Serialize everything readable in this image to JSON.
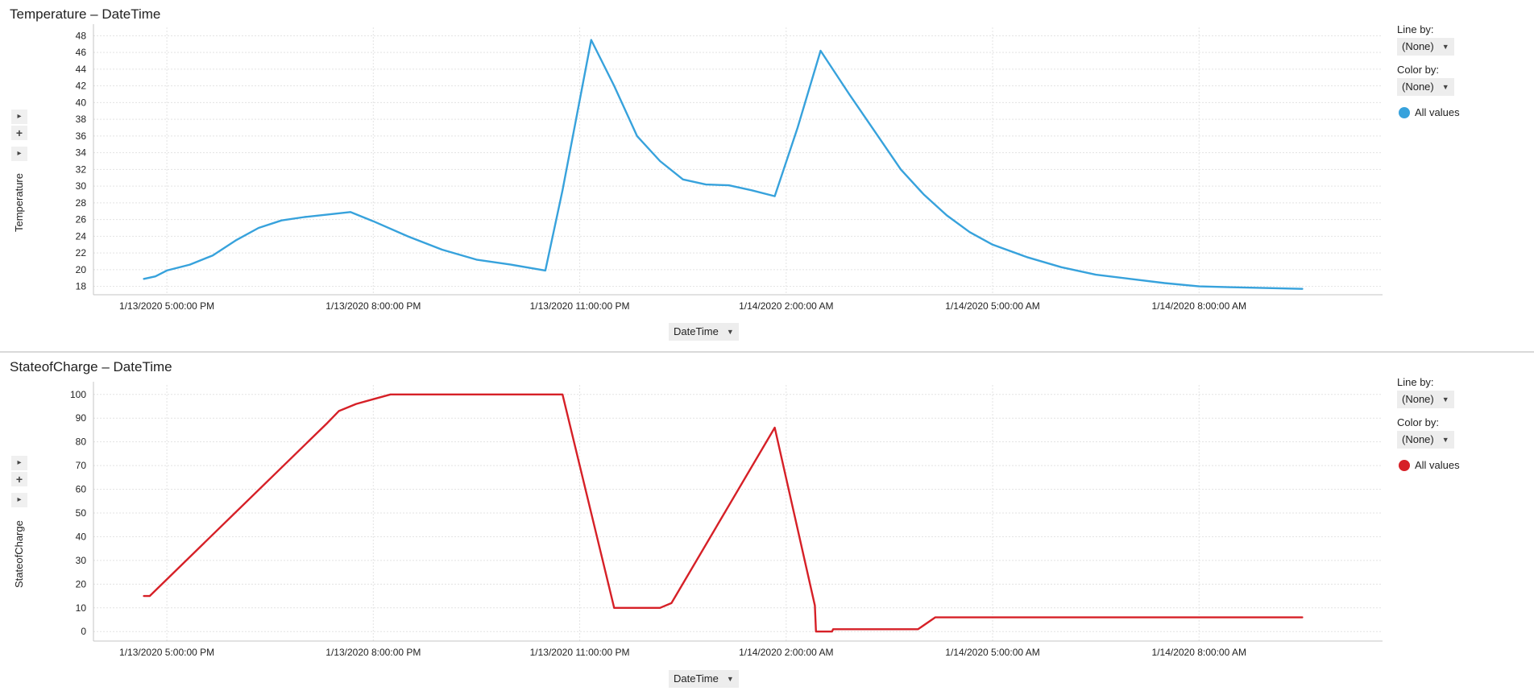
{
  "chart_data": [
    {
      "type": "line",
      "title": "Temperature – DateTime",
      "xlabel": "DateTime",
      "ylabel": "Temperature",
      "ylim": [
        17,
        49
      ],
      "yticks": [
        18,
        20,
        22,
        24,
        26,
        28,
        30,
        32,
        34,
        36,
        38,
        40,
        42,
        44,
        46,
        48
      ],
      "xlim": [
        "1/13/2020 3:56:00 PM",
        "1/14/2020 10:40:00 AM"
      ],
      "xticks": [
        "1/13/2020 5:00:00 PM",
        "1/13/2020 8:00:00 PM",
        "1/13/2020 11:00:00 PM",
        "1/14/2020 2:00:00 AM",
        "1/14/2020 5:00:00 AM",
        "1/14/2020 8:00:00 AM"
      ],
      "grid": true,
      "legend_position": "right",
      "color": "#37a2dc",
      "series": [
        {
          "name": "All values",
          "x": [
            "1/13/2020 4:40:00 PM",
            "1/13/2020 4:50:00 PM",
            "1/13/2020 5:00:00 PM",
            "1/13/2020 5:20:00 PM",
            "1/13/2020 5:40:00 PM",
            "1/13/2020 6:00:00 PM",
            "1/13/2020 6:20:00 PM",
            "1/13/2020 6:40:00 PM",
            "1/13/2020 7:00:00 PM",
            "1/13/2020 7:20:00 PM",
            "1/13/2020 7:40:00 PM",
            "1/13/2020 8:00:00 PM",
            "1/13/2020 8:30:00 PM",
            "1/13/2020 9:00:00 PM",
            "1/13/2020 9:30:00 PM",
            "1/13/2020 10:00:00 PM",
            "1/13/2020 10:30:00 PM",
            "1/13/2020 10:45:00 PM",
            "1/13/2020 11:10:00 PM",
            "1/13/2020 11:30:00 PM",
            "1/13/2020 11:50:00 PM",
            "1/14/2020 12:10:00 AM",
            "1/14/2020 12:30:00 AM",
            "1/14/2020 12:50:00 AM",
            "1/14/2020 1:10:00 AM",
            "1/14/2020 1:30:00 AM",
            "1/14/2020 1:50:00 AM",
            "1/14/2020 2:10:00 AM",
            "1/14/2020 2:30:00 AM",
            "1/14/2020 2:55:00 AM",
            "1/14/2020 3:20:00 AM",
            "1/14/2020 3:40:00 AM",
            "1/14/2020 4:00:00 AM",
            "1/14/2020 4:20:00 AM",
            "1/14/2020 4:40:00 AM",
            "1/14/2020 5:00:00 AM",
            "1/14/2020 5:30:00 AM",
            "1/14/2020 6:00:00 AM",
            "1/14/2020 6:30:00 AM",
            "1/14/2020 7:00:00 AM",
            "1/14/2020 7:30:00 AM",
            "1/14/2020 8:00:00 AM",
            "1/14/2020 8:30:00 AM",
            "1/14/2020 9:00:00 AM",
            "1/14/2020 9:30:00 AM"
          ],
          "values": [
            18.9,
            19.2,
            19.9,
            20.6,
            21.7,
            23.5,
            25.0,
            25.9,
            26.3,
            26.6,
            26.9,
            25.8,
            24.0,
            22.4,
            21.2,
            20.6,
            19.9,
            29.5,
            47.5,
            42.0,
            36.0,
            33.0,
            30.8,
            30.2,
            30.1,
            29.5,
            28.8,
            37.0,
            46.2,
            41.0,
            36.0,
            32.0,
            29.0,
            26.5,
            24.5,
            23.0,
            21.5,
            20.3,
            19.4,
            18.9,
            18.4,
            18.0,
            17.9,
            17.8,
            17.7
          ]
        }
      ]
    },
    {
      "type": "line",
      "title": "StateofCharge – DateTime",
      "xlabel": "DateTime",
      "ylabel": "StateofCharge",
      "ylim": [
        -4,
        104
      ],
      "yticks": [
        0,
        10,
        20,
        30,
        40,
        50,
        60,
        70,
        80,
        90,
        100
      ],
      "xlim": [
        "1/13/2020 3:56:00 PM",
        "1/14/2020 10:40:00 AM"
      ],
      "xticks": [
        "1/13/2020 5:00:00 PM",
        "1/13/2020 8:00:00 PM",
        "1/13/2020 11:00:00 PM",
        "1/14/2020 2:00:00 AM",
        "1/14/2020 5:00:00 AM",
        "1/14/2020 8:00:00 AM"
      ],
      "grid": true,
      "legend_position": "right",
      "color": "#d62027",
      "series": [
        {
          "name": "All values",
          "x": [
            "1/13/2020 4:40:00 PM",
            "1/13/2020 4:45:00 PM",
            "1/13/2020 7:20:00 PM",
            "1/13/2020 7:30:00 PM",
            "1/13/2020 7:45:00 PM",
            "1/13/2020 8:00:00 PM",
            "1/13/2020 8:15:00 PM",
            "1/13/2020 10:45:00 PM",
            "1/13/2020 11:30:00 PM",
            "1/14/2020 12:10:00 AM",
            "1/14/2020 12:20:00 AM",
            "1/14/2020 1:50:00 AM",
            "1/14/2020 2:25:00 AM",
            "1/14/2020 2:26:00 AM",
            "1/14/2020 2:40:00 AM",
            "1/14/2020 2:41:00 AM",
            "1/14/2020 3:55:00 AM",
            "1/14/2020 4:10:00 AM",
            "1/14/2020 9:30:00 AM"
          ],
          "values": [
            15,
            15,
            88,
            93,
            96,
            98,
            100,
            100,
            10,
            10,
            12,
            86,
            11,
            0,
            0,
            1,
            1,
            6,
            6
          ]
        }
      ]
    }
  ],
  "panels": [
    {
      "title": "Temperature – DateTime",
      "y_axis_label": "Temperature",
      "x_axis_select": "DateTime",
      "line_by_label": "Line by:",
      "line_by_value": "(None)",
      "color_by_label": "Color by:",
      "color_by_value": "(None)",
      "legend_label": "All values",
      "legend_color": "#37a2dc"
    },
    {
      "title": "StateofCharge – DateTime",
      "y_axis_label": "StateofCharge",
      "x_axis_select": "DateTime",
      "line_by_label": "Line by:",
      "line_by_value": "(None)",
      "color_by_label": "Color by:",
      "color_by_value": "(None)",
      "legend_label": "All values",
      "legend_color": "#d62027"
    }
  ],
  "axis_controls": {
    "expand_glyph": "▸",
    "add_glyph": "+"
  },
  "icons": {
    "dropdown": "caret-down-icon",
    "expand": "expand-arrow-icon",
    "add": "plus-icon",
    "legend_marker": "circle-icon"
  }
}
